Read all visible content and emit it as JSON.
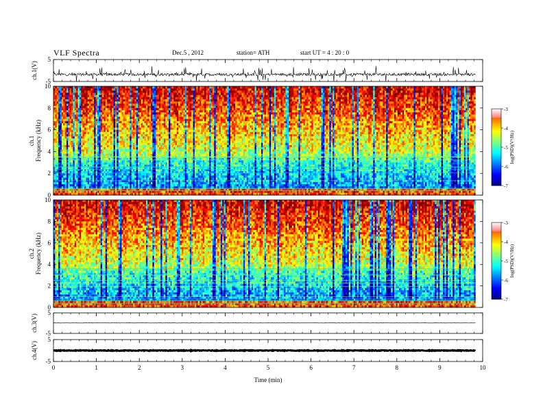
{
  "header": {
    "title": "VLF  Spectra",
    "date": "Dec.5  , 2012",
    "station": "station= ATH",
    "start": "start  UT  =   4  : 20 : 0"
  },
  "chart_data": {
    "type": "heatmap",
    "panels": [
      {
        "id": "ch1-waveform",
        "type": "line",
        "ylabel": "ch.1(V)",
        "ylim": [
          -5,
          5
        ],
        "yticks": [
          "5",
          "-5"
        ],
        "baseline": -1.8,
        "noise": "high"
      },
      {
        "id": "ch1-spectrogram",
        "type": "heatmap",
        "ylabel": [
          "ch.1",
          "Frequency  (kHz)"
        ],
        "ylim": [
          0,
          10
        ],
        "yticks": [
          "0",
          "2",
          "4",
          "6",
          "8",
          "10"
        ],
        "colorbar": {
          "label": "log(PSD)(V²/Hz)",
          "range": [
            -7,
            -3
          ],
          "ticks": [
            "-7",
            "-6",
            "-5",
            "-4",
            "-3"
          ]
        }
      },
      {
        "id": "ch2-spectrogram",
        "type": "heatmap",
        "ylabel": [
          "ch.2",
          "Frequency  (kHz)"
        ],
        "ylim": [
          0,
          10
        ],
        "yticks": [
          "0",
          "2",
          "4",
          "6",
          "8",
          "10"
        ],
        "colorbar": {
          "label": "log(PSD)(V²/Hz)",
          "range": [
            -7,
            -3
          ],
          "ticks": [
            "-7",
            "-6",
            "-5",
            "-4",
            "-3"
          ]
        }
      },
      {
        "id": "ch3-waveform",
        "type": "line",
        "ylabel": "ch.3(V)",
        "ylim": [
          -5,
          5
        ],
        "yticks": [
          "5",
          "-5"
        ],
        "baseline": 0.1,
        "noise": "low"
      },
      {
        "id": "ch4-waveform",
        "type": "line",
        "ylabel": "ch.4(V)",
        "ylim": [
          -5,
          5
        ],
        "yticks": [
          "5",
          "-5"
        ],
        "baseline": 0.0,
        "noise": "thick"
      }
    ],
    "xlabel": "Time  (min)",
    "xlim": [
      0,
      10
    ],
    "xticks": [
      "0",
      "1",
      "2",
      "3",
      "4",
      "5",
      "6",
      "7",
      "8",
      "9",
      "10"
    ],
    "data_end_min": 9.83
  }
}
